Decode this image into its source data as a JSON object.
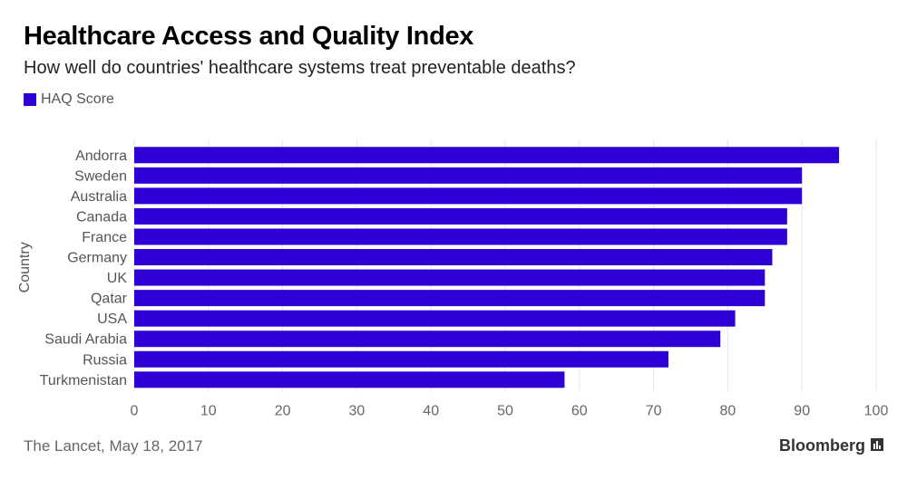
{
  "header": {
    "title": "Healthcare Access and Quality Index",
    "subtitle": "How well do countries' healthcare systems treat preventable deaths?"
  },
  "legend": {
    "label": "HAQ Score",
    "color": "#2e00d6"
  },
  "footer": {
    "source": "The Lancet, May 18, 2017",
    "brand": "Bloomberg",
    "brand_icon": "bar-chart-icon"
  },
  "chart_data": {
    "type": "bar",
    "orientation": "horizontal",
    "categories": [
      "Andorra",
      "Sweden",
      "Australia",
      "Canada",
      "France",
      "Germany",
      "UK",
      "Qatar",
      "USA",
      "Saudi Arabia",
      "Russia",
      "Turkmenistan"
    ],
    "series": [
      {
        "name": "HAQ Score",
        "values": [
          95,
          90,
          90,
          88,
          88,
          86,
          85,
          85,
          81,
          79,
          72,
          58
        ]
      }
    ],
    "title": "Healthcare Access and Quality Index",
    "subtitle": "How well do countries' healthcare systems treat preventable deaths?",
    "xlabel": "",
    "ylabel": "Country",
    "xlim": [
      0,
      100
    ],
    "xticks": [
      0,
      10,
      20,
      30,
      40,
      50,
      60,
      70,
      80,
      90,
      100
    ],
    "grid": true,
    "legend_position": "top-left",
    "bar_color": "#2e00d6"
  }
}
